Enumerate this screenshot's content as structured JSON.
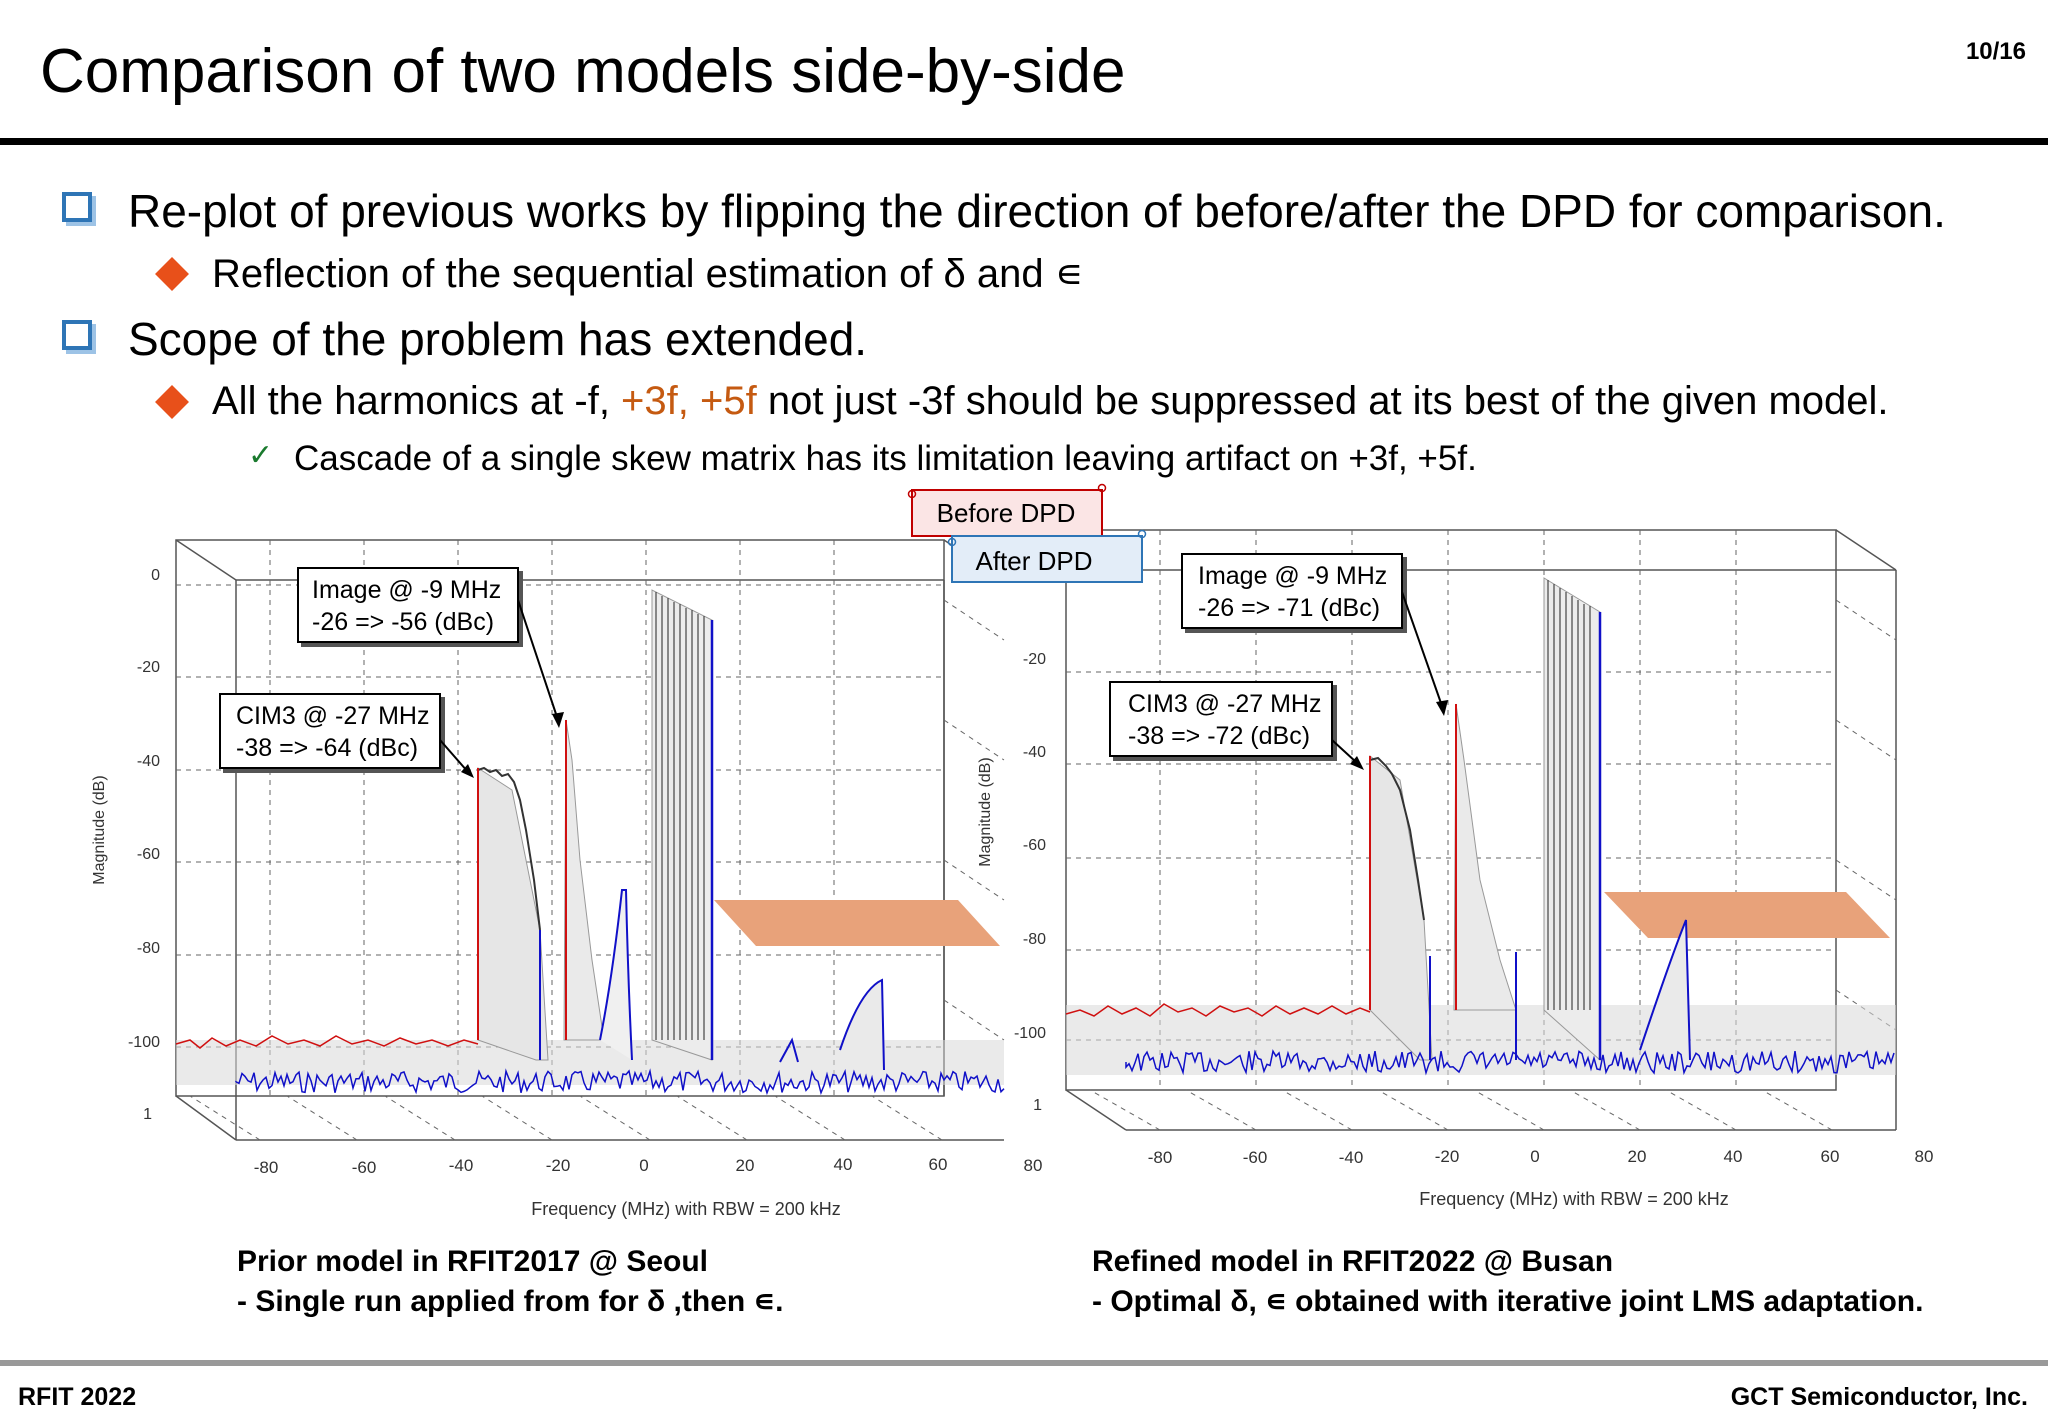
{
  "slide": {
    "title": "Comparison of two models side-by-side",
    "page": "10/16"
  },
  "bullets": {
    "b1": "Re-plot of previous works by flipping the direction of before/after the DPD for comparison.",
    "b1_sub": "Reflection of the sequential estimation of δ and ∊",
    "b2": "Scope of the problem has extended.",
    "b2_sub_pre": "All the harmonics at -f, ",
    "b2_sub_hl": "+3f, +5f",
    "b2_sub_post": " not just -3f should be suppressed at its best of the given model.",
    "b2_sub_sub": "Cascade of a single skew matrix has its limitation leaving artifact on +3f, +5f."
  },
  "legend": {
    "before": "Before DPD",
    "after": "After DPD"
  },
  "plots": {
    "left": {
      "ylabel": "Magnitude (dB)",
      "xlabel": "Frequency (MHz) with RBW = 200 kHz",
      "yticks": [
        "0",
        "-20",
        "-40",
        "-60",
        "-80",
        "-100",
        "1"
      ],
      "xticks": [
        "-80",
        "-60",
        "-40",
        "-20",
        "0",
        "20",
        "40",
        "60",
        "80"
      ],
      "callout_image_line1": "Image @ -9 MHz",
      "callout_image_line2": "-26 => -56 (dBc)",
      "callout_cim_line1": "CIM3 @ -27 MHz",
      "callout_cim_line2": "-38 => -64 (dBc)"
    },
    "right": {
      "ylabel": "Magnitude (dB)",
      "xlabel": "Frequency (MHz) with RBW = 200 kHz",
      "yticks": [
        "-20",
        "-40",
        "-60",
        "-80",
        "-100",
        "1"
      ],
      "xticks": [
        "-80",
        "-60",
        "-40",
        "-20",
        "0",
        "20",
        "40",
        "60",
        "80"
      ],
      "callout_image_line1": "Image @ -9 MHz",
      "callout_image_line2": "-26 => -71 (dBc)",
      "callout_cim_line1": "CIM3 @ -27 MHz",
      "callout_cim_line2": "-38 => -72 (dBc)"
    }
  },
  "captions": {
    "left_line1": "Prior model  in RFIT2017 @ Seoul",
    "left_line2": " - Single run applied from for δ ,then ∊.",
    "right_line1": "Refined model  in RFIT2022 @ Busan",
    "right_line2": " - Optimal δ, ∊ obtained with iterative joint LMS adaptation."
  },
  "footer": {
    "left": "RFIT 2022",
    "right": "GCT Semiconductor, Inc."
  },
  "colors": {
    "before_trace": "#d01010",
    "after_trace": "#1010c8",
    "highlight_band": "#e8a27a",
    "bullet_square": "#2e75b6",
    "bullet_diamond": "#e8501a",
    "highlight_text": "#c55a11"
  }
}
